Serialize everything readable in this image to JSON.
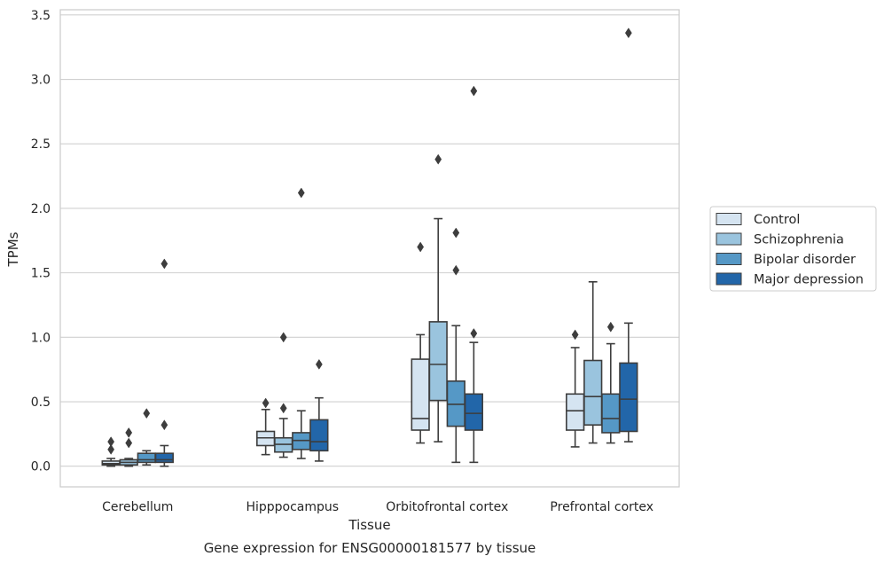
{
  "chart_data": {
    "type": "box",
    "xlabel": "Tissue",
    "ylabel": "TPMs",
    "caption": "Gene expression for ENSG00000181577 by tissue",
    "ylim": [
      -0.16,
      3.54
    ],
    "yticks": [
      0.0,
      0.5,
      1.0,
      1.5,
      2.0,
      2.5,
      3.0,
      3.5
    ],
    "ytick_labels": [
      "0.0",
      "0.5",
      "1.0",
      "1.5",
      "2.0",
      "2.5",
      "3.0",
      "3.5"
    ],
    "grid": "horizontal",
    "legend_position": "right",
    "categories": [
      "Cerebellum",
      "Hipppocampus",
      "Orbitofrontal cortex",
      "Prefrontal cortex"
    ],
    "series": [
      {
        "name": "Control",
        "color": "#d5e4f1",
        "boxes": [
          {
            "min": 0.0,
            "q1": 0.01,
            "median": 0.02,
            "q3": 0.04,
            "max": 0.06,
            "outliers": [
              0.13,
              0.19
            ]
          },
          {
            "min": 0.09,
            "q1": 0.16,
            "median": 0.22,
            "q3": 0.27,
            "max": 0.44,
            "outliers": [
              0.49
            ]
          },
          {
            "min": 0.18,
            "q1": 0.28,
            "median": 0.37,
            "q3": 0.83,
            "max": 1.02,
            "outliers": [
              1.7
            ]
          },
          {
            "min": 0.15,
            "q1": 0.28,
            "median": 0.43,
            "q3": 0.56,
            "max": 0.92,
            "outliers": [
              1.02
            ]
          }
        ]
      },
      {
        "name": "Schizophrenia",
        "color": "#9ac4de",
        "boxes": [
          {
            "min": 0.0,
            "q1": 0.01,
            "median": 0.03,
            "q3": 0.05,
            "max": 0.06,
            "outliers": [
              0.18,
              0.26
            ]
          },
          {
            "min": 0.07,
            "q1": 0.11,
            "median": 0.17,
            "q3": 0.22,
            "max": 0.37,
            "outliers": [
              0.45,
              1.0
            ]
          },
          {
            "min": 0.19,
            "q1": 0.51,
            "median": 0.79,
            "q3": 1.12,
            "max": 1.92,
            "outliers": [
              2.38
            ]
          },
          {
            "min": 0.18,
            "q1": 0.32,
            "median": 0.54,
            "q3": 0.82,
            "max": 1.43,
            "outliers": []
          }
        ]
      },
      {
        "name": "Bipolar disorder",
        "color": "#5598c6",
        "boxes": [
          {
            "min": 0.01,
            "q1": 0.03,
            "median": 0.05,
            "q3": 0.1,
            "max": 0.12,
            "outliers": [
              0.41
            ]
          },
          {
            "min": 0.06,
            "q1": 0.13,
            "median": 0.2,
            "q3": 0.26,
            "max": 0.43,
            "outliers": [
              2.12
            ]
          },
          {
            "min": 0.03,
            "q1": 0.31,
            "median": 0.48,
            "q3": 0.66,
            "max": 1.09,
            "outliers": [
              1.52,
              1.81
            ]
          },
          {
            "min": 0.18,
            "q1": 0.26,
            "median": 0.37,
            "q3": 0.56,
            "max": 0.95,
            "outliers": [
              1.08
            ]
          }
        ]
      },
      {
        "name": "Major depression",
        "color": "#2266a9",
        "boxes": [
          {
            "min": 0.0,
            "q1": 0.03,
            "median": 0.05,
            "q3": 0.1,
            "max": 0.16,
            "outliers": [
              0.32,
              1.57
            ]
          },
          {
            "min": 0.04,
            "q1": 0.12,
            "median": 0.19,
            "q3": 0.36,
            "max": 0.53,
            "outliers": [
              0.79
            ]
          },
          {
            "min": 0.03,
            "q1": 0.28,
            "median": 0.41,
            "q3": 0.56,
            "max": 0.96,
            "outliers": [
              1.03,
              2.91
            ]
          },
          {
            "min": 0.19,
            "q1": 0.27,
            "median": 0.52,
            "q3": 0.8,
            "max": 1.11,
            "outliers": [
              3.36
            ]
          }
        ]
      }
    ]
  }
}
